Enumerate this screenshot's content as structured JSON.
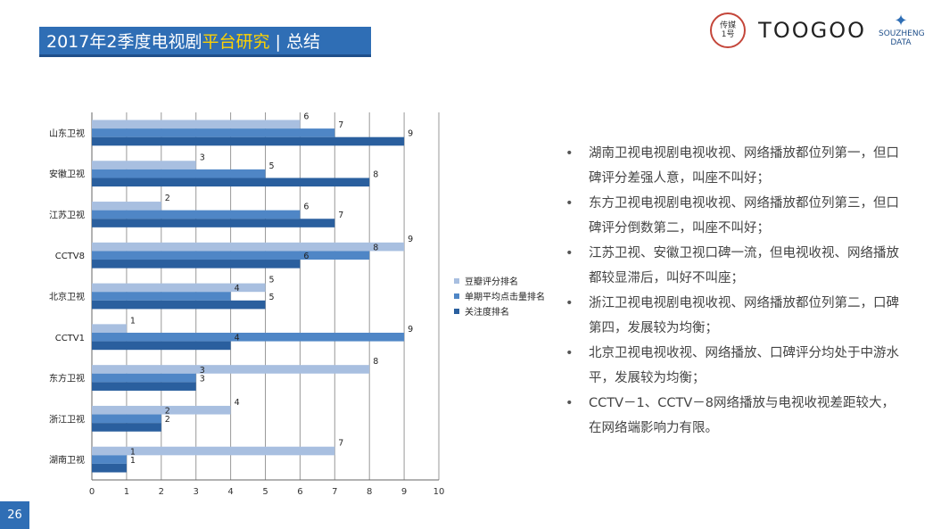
{
  "header": {
    "title_main": "2017年2季度电视剧",
    "title_highlight": "平台研究",
    "title_sep": "|",
    "title_tail": "总结"
  },
  "logos": {
    "circle_text_1": "传媒",
    "circle_text_2": "1号",
    "toogoo": "TOOGOO",
    "sz_text": "SOUZHENG DATA"
  },
  "page_number": "26",
  "bullets": [
    "湖南卫视电视剧电视收视、网络播放都位列第一，但口碑评分差强人意，叫座不叫好；",
    "东方卫视电视剧电视收视、网络播放都位列第三，但口碑评分倒数第二，叫座不叫好；",
    "江苏卫视、安徽卫视口碑一流，但电视收视、网络播放都较显滞后，叫好不叫座；",
    "浙江卫视电视剧电视收视、网络播放都位列第二，口碑第四，发展较为均衡；",
    "北京卫视电视收视、网络播放、口碑评分均处于中游水平，发展较为均衡；",
    "CCTV－1、CCTV－8网络播放与电视收视差距较大，在网络端影响力有限。"
  ],
  "chart_data": {
    "type": "bar",
    "orientation": "horizontal",
    "categories": [
      "山东卫视",
      "安徽卫视",
      "江苏卫视",
      "CCTV8",
      "北京卫视",
      "CCTV1",
      "东方卫视",
      "浙江卫视",
      "湖南卫视"
    ],
    "series": [
      {
        "name": "豆瓣评分排名",
        "values": [
          6,
          3,
          2,
          9,
          5,
          1,
          8,
          4,
          7
        ],
        "color": "#a8bfe0"
      },
      {
        "name": "单期平均点击量排名",
        "values": [
          7,
          5,
          6,
          8,
          4,
          9,
          3,
          2,
          1
        ],
        "color": "#4f86c6"
      },
      {
        "name": "关注度排名",
        "values": [
          9,
          8,
          7,
          6,
          5,
          4,
          3,
          2,
          1
        ],
        "color": "#2a5f9e"
      }
    ],
    "xlim": [
      0,
      10
    ],
    "xticks": [
      "0",
      "1",
      "2",
      "3",
      "4",
      "5",
      "6",
      "7",
      "8",
      "9",
      "10"
    ],
    "grid": true,
    "legend_position": "right"
  }
}
